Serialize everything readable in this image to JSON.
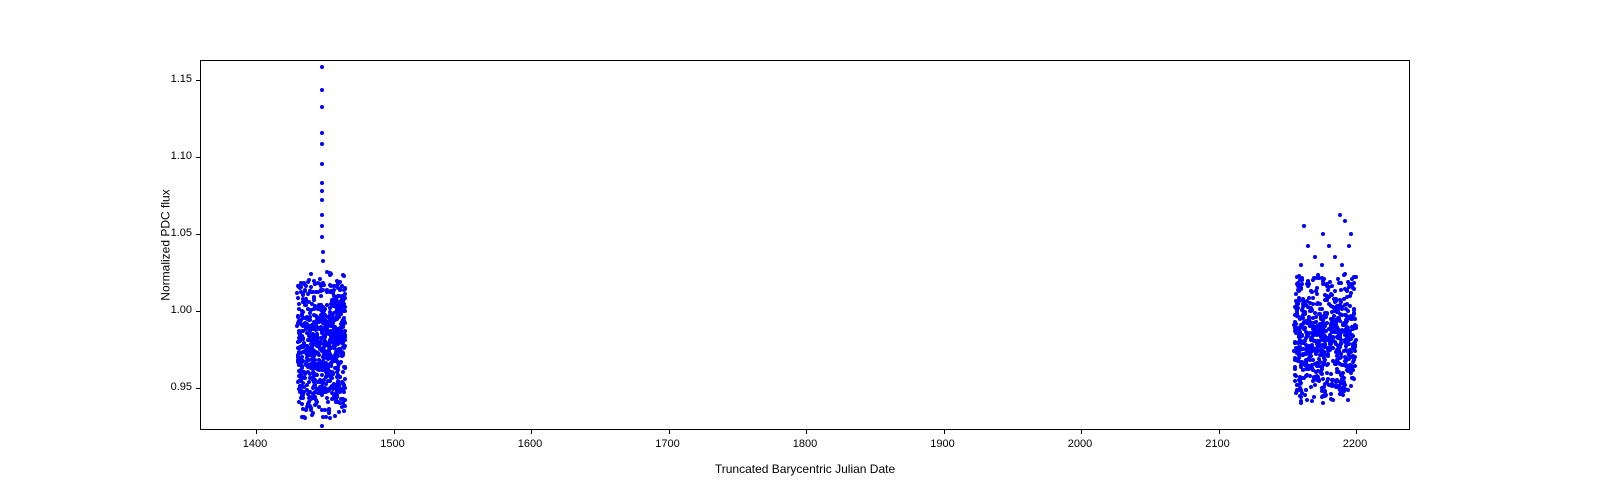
{
  "chart": {
    "type": "scatter",
    "xlabel": "Truncated Barycentric Julian Date",
    "ylabel": "Normalized PDC flux",
    "xlim": [
      1360,
      2240
    ],
    "ylim": [
      0.922,
      1.162
    ],
    "xticks": [
      1400,
      1500,
      1600,
      1700,
      1800,
      1900,
      2000,
      2100,
      2200
    ],
    "yticks": [
      0.95,
      1.0,
      1.05,
      1.1,
      1.15
    ],
    "ytick_labels": [
      "0.95",
      "1.00",
      "1.05",
      "1.10",
      "1.15"
    ],
    "marker_color": "#0000ff",
    "marker_size": 4,
    "background_color": "#ffffff",
    "border_color": "#000000",
    "label_fontsize": 12,
    "tick_fontsize": 11,
    "clusters": [
      {
        "x_range": [
          1430,
          1465
        ],
        "y_dense_range": [
          0.93,
          1.025
        ],
        "y_sparse_points": [
          {
            "x": 1448,
            "y": 1.158
          },
          {
            "x": 1448,
            "y": 1.143
          },
          {
            "x": 1448,
            "y": 1.132
          },
          {
            "x": 1448,
            "y": 1.115
          },
          {
            "x": 1448,
            "y": 1.108
          },
          {
            "x": 1448,
            "y": 1.095
          },
          {
            "x": 1448,
            "y": 1.083
          },
          {
            "x": 1448,
            "y": 1.078
          },
          {
            "x": 1448,
            "y": 1.072
          },
          {
            "x": 1448,
            "y": 1.062
          },
          {
            "x": 1448,
            "y": 1.055
          },
          {
            "x": 1448,
            "y": 1.048
          },
          {
            "x": 1449,
            "y": 1.038
          },
          {
            "x": 1449,
            "y": 1.032
          },
          {
            "x": 1448,
            "y": 0.925
          }
        ],
        "dense_count": 800
      },
      {
        "x_range": [
          2155,
          2200
        ],
        "y_dense_range": [
          0.94,
          1.025
        ],
        "y_sparse_points": [
          {
            "x": 2188,
            "y": 1.062
          },
          {
            "x": 2162,
            "y": 1.055
          },
          {
            "x": 2192,
            "y": 1.058
          },
          {
            "x": 2176,
            "y": 1.05
          },
          {
            "x": 2196,
            "y": 1.05
          },
          {
            "x": 2165,
            "y": 1.042
          },
          {
            "x": 2180,
            "y": 1.042
          },
          {
            "x": 2195,
            "y": 1.042
          },
          {
            "x": 2170,
            "y": 1.035
          },
          {
            "x": 2185,
            "y": 1.035
          },
          {
            "x": 2160,
            "y": 1.03
          },
          {
            "x": 2175,
            "y": 1.03
          },
          {
            "x": 2190,
            "y": 1.03
          }
        ],
        "dense_count": 700
      }
    ]
  }
}
